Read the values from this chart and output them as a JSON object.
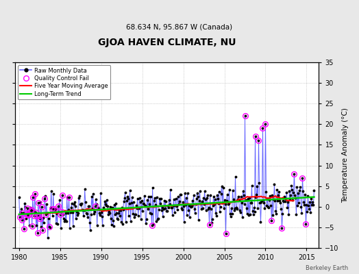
{
  "title": "GJOA HAVEN CLIMATE, NU",
  "subtitle": "68.634 N, 95.867 W (Canada)",
  "ylabel_right": "Temperature Anomaly (°C)",
  "attribution": "Berkeley Earth",
  "xlim": [
    1979.5,
    2016.5
  ],
  "ylim": [
    -10,
    35
  ],
  "yticks": [
    -10,
    -5,
    0,
    5,
    10,
    15,
    20,
    25,
    30,
    35
  ],
  "xticks": [
    1980,
    1985,
    1990,
    1995,
    2000,
    2005,
    2010,
    2015
  ],
  "background_color": "#e8e8e8",
  "plot_bg_color": "#ffffff",
  "raw_line_color": "#6666ff",
  "raw_marker_color": "#000000",
  "qc_fail_color": "#ff00ff",
  "moving_avg_color": "#ff0000",
  "trend_color": "#00cc00",
  "seed": 7,
  "n_months": 432
}
